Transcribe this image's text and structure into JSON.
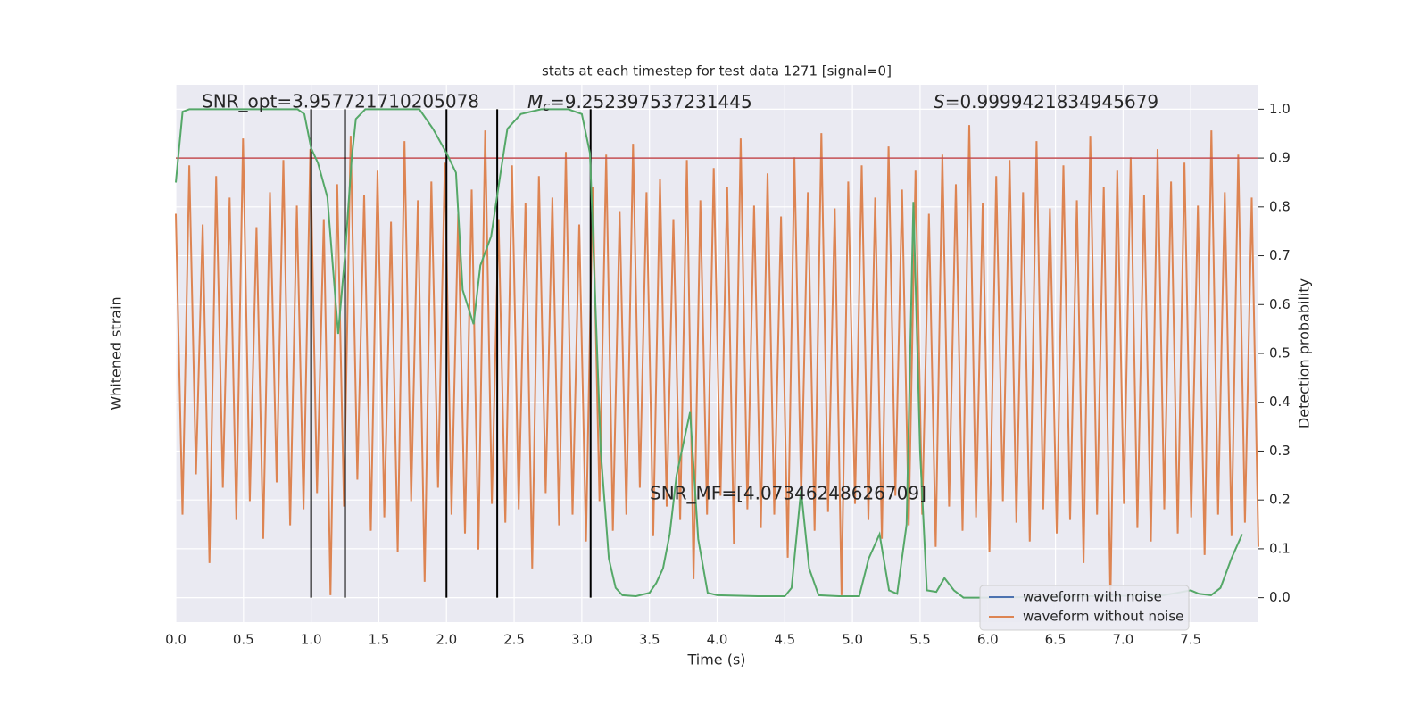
{
  "chart_data": {
    "type": "line",
    "title": "stats at each timestep for test data 1271 [signal=0]",
    "xlabel": "Time (s)",
    "ylabel": "Whitened strain",
    "y2label": "Detection probability",
    "xlim": [
      0,
      8
    ],
    "ylim": [
      -1,
      1
    ],
    "y2lim": [
      -0.05,
      1.05
    ],
    "xticks": [
      {
        "value": 0,
        "label": "0.0"
      },
      0.5,
      {
        "value": 1,
        "label": "1.0"
      },
      1.5,
      {
        "value": 2,
        "label": "2.0"
      },
      2.5,
      {
        "value": 3,
        "label": "3.0"
      },
      3.5,
      {
        "value": 4,
        "label": "4.0"
      },
      4.5,
      {
        "value": 5,
        "label": "5.0"
      },
      5.5,
      {
        "value": 6,
        "label": "6.0"
      },
      6.5,
      {
        "value": 7,
        "label": "7.0"
      },
      7.5
    ],
    "y2ticks": [
      {
        "value": 0,
        "label": "0.0"
      },
      0.1,
      0.2,
      0.3,
      0.4,
      0.5,
      0.6,
      0.7,
      0.8,
      0.9,
      {
        "value": 1,
        "label": "1.0"
      }
    ],
    "grid": true,
    "legend": "lower right",
    "series": [
      {
        "name": "waveform with noise",
        "color": "#4c72b0"
      },
      {
        "name": "waveform without noise",
        "color": "#dd8452",
        "values": [
          0.52,
          -0.6,
          0.7,
          -0.45,
          0.48,
          -0.78,
          0.66,
          -0.5,
          0.58,
          -0.62,
          0.8,
          -0.55,
          0.47,
          -0.69,
          0.6,
          -0.48,
          0.72,
          -0.64,
          0.55,
          -0.58,
          0.76,
          -0.52,
          0.5,
          -0.9,
          0.63,
          -0.57,
          0.81,
          -0.47,
          0.59,
          -0.66,
          0.68,
          -0.61,
          0.49,
          -0.74,
          0.79,
          -0.55,
          0.57,
          -0.85,
          0.64,
          -0.5,
          0.71,
          -0.6,
          0.52,
          -0.67,
          0.61,
          -0.73,
          0.83,
          -0.56,
          0.5,
          -0.63,
          0.7,
          -0.58,
          0.56,
          -0.8,
          0.66,
          -0.52,
          0.58,
          -0.64,
          0.75,
          -0.6,
          0.48,
          -0.7,
          0.62,
          -0.55,
          0.74,
          -0.66,
          0.53,
          -0.6,
          0.78,
          -0.5,
          0.6,
          -0.68,
          0.65,
          -0.57,
          0.5,
          -0.62,
          0.72,
          -0.84,
          0.57,
          -0.6,
          0.69,
          -0.53,
          0.62,
          -0.71,
          0.8,
          -0.58,
          0.55,
          -0.65,
          0.67,
          -0.6,
          0.51,
          -0.76,
          0.73,
          -0.54,
          0.6,
          -0.66,
          0.82,
          -0.59,
          0.54,
          -0.9,
          0.64,
          -0.56,
          0.7,
          -0.62,
          0.58,
          -0.69,
          0.77,
          -0.53,
          0.61,
          -0.64,
          0.68,
          -0.6,
          0.52,
          -0.72,
          0.74,
          -0.57,
          0.63,
          -0.66,
          0.85,
          -0.61,
          0.56,
          -0.74,
          0.66,
          -0.55,
          0.72,
          -0.63,
          0.6,
          -0.7,
          0.79,
          -0.58,
          0.54,
          -0.67,
          0.7,
          -0.62,
          0.57,
          -0.78,
          0.81,
          -0.6,
          0.62,
          -0.92,
          0.68,
          -0.56,
          0.73,
          -0.65,
          0.59,
          -0.7,
          0.76,
          -0.58,
          0.64,
          -0.67,
          0.71,
          -0.61,
          0.55,
          -0.75,
          0.83,
          -0.6,
          0.6,
          -0.68,
          0.74,
          -0.63,
          0.58,
          -0.72
        ]
      },
      {
        "name": "Detection probability",
        "color": "#55a868",
        "axis": "y2",
        "x": [
          0,
          0.05,
          0.1,
          0.2,
          0.5,
          0.9,
          0.95,
          1.0,
          1.05,
          1.12,
          1.2,
          1.25,
          1.3,
          1.33,
          1.4,
          1.8,
          1.9,
          2.0,
          2.07,
          2.12,
          2.2,
          2.25,
          2.33,
          2.4,
          2.45,
          2.55,
          2.7,
          2.9,
          3.0,
          3.06,
          3.14,
          3.2,
          3.25,
          3.3,
          3.4,
          3.5,
          3.55,
          3.6,
          3.65,
          3.7,
          3.8,
          3.86,
          3.93,
          4.0,
          4.3,
          4.5,
          4.55,
          4.62,
          4.68,
          4.75,
          4.9,
          5.05,
          5.12,
          5.2,
          5.27,
          5.33,
          5.4,
          5.45,
          5.5,
          5.55,
          5.62,
          5.68,
          5.75,
          5.82,
          6.0,
          7.3,
          7.4,
          7.5,
          7.56,
          7.65,
          7.72,
          7.8,
          7.88
        ],
        "values": [
          0.85,
          0.995,
          1.0,
          1.0,
          1.0,
          1.0,
          0.99,
          0.92,
          0.89,
          0.82,
          0.54,
          0.7,
          0.9,
          0.98,
          1.0,
          1.0,
          0.96,
          0.91,
          0.87,
          0.63,
          0.56,
          0.68,
          0.74,
          0.87,
          0.96,
          0.99,
          1.0,
          1.0,
          0.99,
          0.91,
          0.3,
          0.08,
          0.02,
          0.005,
          0.003,
          0.01,
          0.03,
          0.06,
          0.13,
          0.25,
          0.38,
          0.12,
          0.01,
          0.005,
          0.003,
          0.003,
          0.02,
          0.22,
          0.06,
          0.005,
          0.003,
          0.003,
          0.08,
          0.13,
          0.015,
          0.008,
          0.15,
          0.81,
          0.3,
          0.015,
          0.012,
          0.04,
          0.015,
          0,
          0,
          0.005,
          0.01,
          0.015,
          0.008,
          0.005,
          0.02,
          0.08,
          0.13
        ]
      }
    ],
    "threshold": {
      "value": 0.9,
      "color": "#c44e52"
    },
    "vlines": {
      "x": [
        1.0,
        1.25,
        2.0,
        2.375,
        3.065
      ],
      "y2": [
        0,
        1
      ],
      "color": "#000000"
    },
    "annotations": [
      {
        "text": "SNR_opt=3.957721710205078"
      },
      {
        "symbol": "M",
        "subscript": "c",
        "text": "=9.252397537231445"
      },
      {
        "symbol": "S",
        "text": "=0.9999421834945679"
      },
      {
        "text": "SNR_MF=[4.07346248626709]"
      }
    ]
  }
}
